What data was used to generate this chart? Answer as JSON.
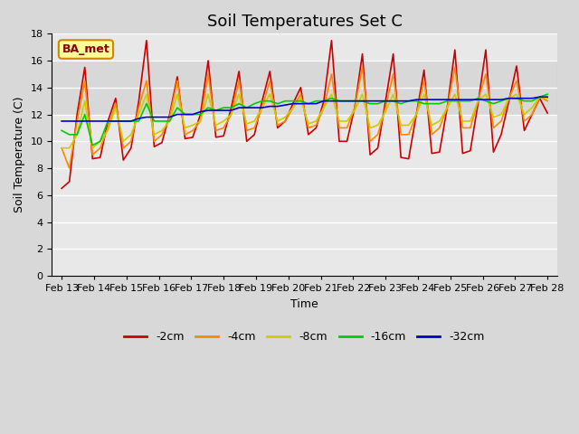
{
  "title": "Soil Temperatures Set C",
  "xlabel": "Time",
  "ylabel": "Soil Temperature (C)",
  "ylim": [
    0,
    18
  ],
  "yticks": [
    0,
    2,
    4,
    6,
    8,
    10,
    12,
    14,
    16,
    18
  ],
  "xtick_labels": [
    "Feb 13",
    "Feb 14",
    "Feb 15",
    "Feb 16",
    "Feb 17",
    "Feb 18",
    "Feb 19",
    "Feb 20",
    "Feb 21",
    "Feb 22",
    "Feb 23",
    "Feb 24",
    "Feb 25",
    "Feb 26",
    "Feb 27",
    "Feb 28"
  ],
  "colors": {
    "-2cm": "#cc0000",
    "-4cm": "#ff8800",
    "-8cm": "#cccc00",
    "-16cm": "#00cc00",
    "-32cm": "#0000cc"
  },
  "legend_label": "BA_met",
  "legend_box_color": "#ffff99",
  "legend_box_border": "#cc8800",
  "grid_color": "#ffffff",
  "title_fontsize": 13,
  "axis_fontsize": 9,
  "tick_fontsize": 8,
  "n_days": 16,
  "n_per_day": 4,
  "temp_2cm": [
    6.5,
    7.0,
    12.0,
    15.5,
    8.7,
    8.8,
    11.5,
    13.2,
    8.6,
    9.5,
    13.0,
    17.5,
    9.6,
    9.9,
    12.0,
    14.8,
    10.2,
    10.3,
    12.0,
    16.0,
    10.3,
    10.4,
    12.5,
    15.2,
    10.0,
    10.5,
    13.0,
    15.2,
    11.0,
    11.5,
    12.8,
    14.0,
    10.5,
    11.0,
    13.0,
    17.5,
    10.0,
    10.0,
    12.5,
    16.5,
    9.0,
    9.5,
    13.0,
    16.5,
    8.8,
    8.7,
    12.0,
    15.3,
    9.1,
    9.2,
    12.5,
    16.8,
    9.1,
    9.3,
    12.8,
    16.8,
    9.2,
    10.5,
    13.0,
    15.6,
    10.8,
    12.0,
    13.2,
    12.1
  ],
  "temp_4cm": [
    9.5,
    8.0,
    11.5,
    14.5,
    9.0,
    9.5,
    11.0,
    12.8,
    9.5,
    10.0,
    12.5,
    14.5,
    10.0,
    10.5,
    11.8,
    14.5,
    10.5,
    10.8,
    11.5,
    15.0,
    10.8,
    11.0,
    12.0,
    14.5,
    10.8,
    11.0,
    12.5,
    14.5,
    11.2,
    11.5,
    12.5,
    13.5,
    11.0,
    11.2,
    12.5,
    15.0,
    11.0,
    11.0,
    12.5,
    15.5,
    10.0,
    10.5,
    12.5,
    15.0,
    10.5,
    10.5,
    12.0,
    14.5,
    10.5,
    11.0,
    12.5,
    15.5,
    11.0,
    11.0,
    13.0,
    15.0,
    11.0,
    11.5,
    13.2,
    14.5,
    11.5,
    12.0,
    13.3,
    13.0
  ],
  "temp_8cm": [
    9.5,
    9.5,
    10.5,
    13.0,
    9.5,
    10.0,
    10.8,
    12.5,
    10.0,
    10.5,
    12.0,
    13.5,
    10.5,
    10.8,
    11.5,
    13.5,
    11.0,
    11.2,
    11.5,
    13.5,
    11.2,
    11.5,
    12.0,
    13.5,
    11.3,
    11.5,
    12.5,
    13.5,
    11.5,
    11.8,
    12.5,
    13.2,
    11.3,
    11.5,
    12.5,
    13.5,
    11.5,
    11.5,
    12.3,
    13.5,
    11.0,
    11.2,
    12.2,
    13.5,
    11.2,
    11.2,
    12.0,
    13.5,
    11.2,
    11.5,
    12.5,
    13.5,
    11.5,
    11.5,
    13.0,
    13.5,
    11.8,
    12.0,
    13.2,
    13.5,
    12.0,
    12.5,
    13.3,
    13.2
  ],
  "temp_16cm": [
    10.8,
    10.5,
    10.5,
    12.0,
    9.7,
    10.0,
    11.5,
    11.5,
    11.5,
    11.5,
    11.5,
    12.8,
    11.5,
    11.5,
    11.5,
    12.5,
    12.0,
    12.0,
    12.0,
    12.5,
    12.3,
    12.5,
    12.5,
    12.8,
    12.5,
    12.8,
    13.0,
    13.0,
    12.8,
    13.0,
    13.0,
    13.0,
    12.8,
    13.0,
    13.0,
    13.2,
    13.0,
    13.0,
    13.0,
    13.0,
    12.8,
    12.8,
    13.0,
    13.0,
    12.8,
    13.0,
    13.0,
    12.8,
    12.8,
    12.8,
    13.0,
    13.0,
    13.0,
    13.0,
    13.2,
    13.0,
    12.8,
    13.0,
    13.2,
    13.2,
    13.0,
    13.0,
    13.3,
    13.5
  ],
  "temp_32cm": [
    11.5,
    11.5,
    11.5,
    11.5,
    11.5,
    11.5,
    11.5,
    11.5,
    11.5,
    11.5,
    11.7,
    11.8,
    11.8,
    11.8,
    11.8,
    12.0,
    12.0,
    12.0,
    12.2,
    12.3,
    12.3,
    12.3,
    12.3,
    12.5,
    12.5,
    12.5,
    12.5,
    12.6,
    12.6,
    12.7,
    12.8,
    12.8,
    12.8,
    12.8,
    13.0,
    13.0,
    13.0,
    13.0,
    13.0,
    13.0,
    13.0,
    13.0,
    13.0,
    13.0,
    13.0,
    13.0,
    13.1,
    13.1,
    13.1,
    13.1,
    13.1,
    13.1,
    13.1,
    13.1,
    13.1,
    13.1,
    13.1,
    13.1,
    13.2,
    13.2,
    13.2,
    13.2,
    13.3,
    13.3
  ]
}
